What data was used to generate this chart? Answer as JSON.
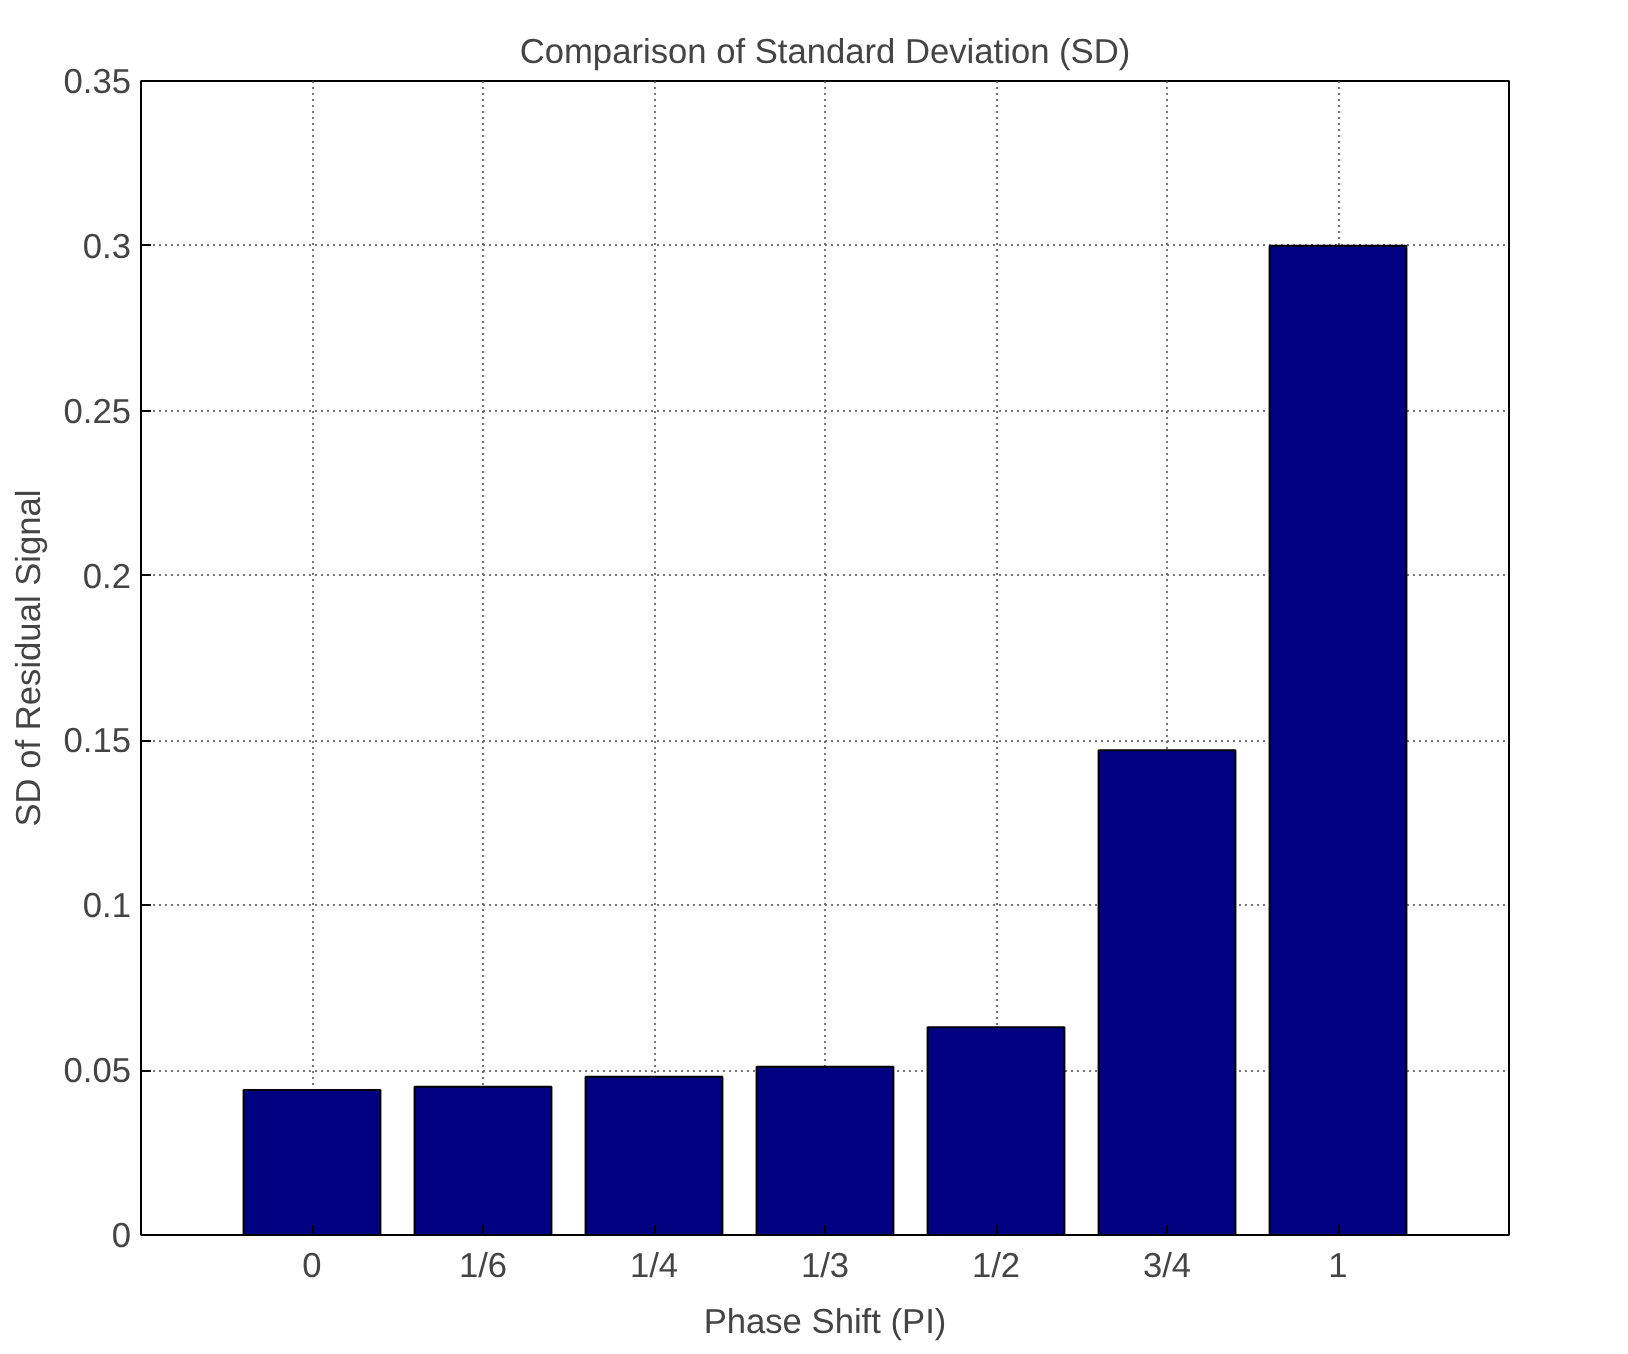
{
  "chart_data": {
    "type": "bar",
    "title": "Comparison of Standard Deviation (SD)",
    "xlabel": "Phase Shift (PI)",
    "ylabel": "SD of Residual Signal",
    "categories": [
      "0",
      "1/6",
      "1/4",
      "1/3",
      "1/2",
      "3/4",
      "1"
    ],
    "values": [
      0.044,
      0.045,
      0.048,
      0.051,
      0.063,
      0.147,
      0.3
    ],
    "color": "#000080",
    "ylim": [
      0,
      0.35
    ],
    "yticks": [
      0,
      0.05,
      0.1,
      0.15,
      0.2,
      0.25,
      0.3,
      0.35
    ],
    "grid": true,
    "line_style": "dotted"
  }
}
